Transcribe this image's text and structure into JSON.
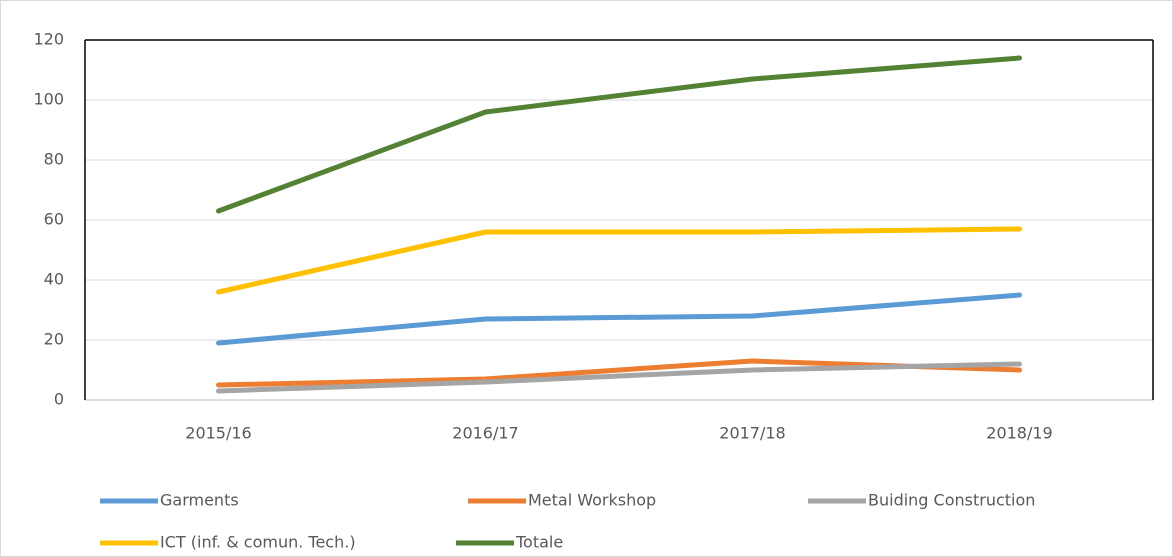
{
  "chart_data": {
    "type": "line",
    "categories": [
      "2015/16",
      "2016/17",
      "2017/18",
      "2018/19"
    ],
    "series": [
      {
        "name": "Garments",
        "color": "#5b9bd5",
        "values": [
          19,
          27,
          28,
          35
        ]
      },
      {
        "name": "Metal Workshop",
        "color": "#ed7d31",
        "values": [
          5,
          7,
          13,
          10
        ]
      },
      {
        "name": "Buiding Construction",
        "color": "#a5a5a5",
        "values": [
          3,
          6,
          10,
          12
        ]
      },
      {
        "name": "ICT (inf. & comun. Tech.)",
        "color": "#ffc000",
        "values": [
          36,
          56,
          56,
          57
        ]
      },
      {
        "name": "Totale",
        "color": "#548235",
        "values": [
          63,
          96,
          107,
          114
        ]
      }
    ],
    "ylim": [
      0,
      120
    ],
    "yticks": [
      0,
      20,
      40,
      60,
      80,
      100,
      120
    ],
    "grid": true,
    "legend": "bottom"
  }
}
